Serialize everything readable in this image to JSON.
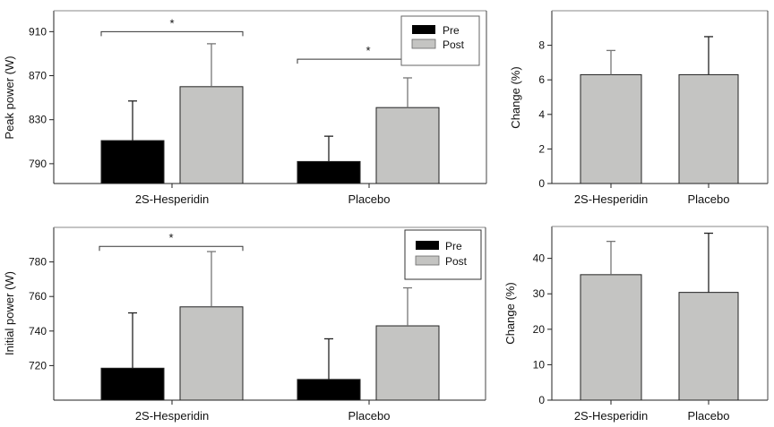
{
  "colors": {
    "pre": "#000000",
    "post": "#c4c4c2",
    "frame": "#555555",
    "error_pre": "#222222",
    "error_post": "#777777"
  },
  "chart_data": [
    {
      "id": "peak-power",
      "type": "bar",
      "title": "",
      "xlabel": "",
      "ylabel": "Peak power (W)",
      "categories": [
        "2S-Hesperidin",
        "Placebo"
      ],
      "ylim": [
        772,
        929
      ],
      "yticks": [
        790,
        830,
        870,
        910
      ],
      "ytick_labels": [
        "790",
        "830",
        "870",
        "910"
      ],
      "grid": false,
      "legend": {
        "position": "top-right",
        "entries": [
          "Pre",
          "Post"
        ]
      },
      "series": [
        {
          "name": "Pre",
          "values": [
            811,
            792
          ],
          "error_upper": [
            847,
            815
          ]
        },
        {
          "name": "Post",
          "values": [
            860,
            841
          ],
          "error_upper": [
            899,
            868
          ]
        }
      ],
      "annotations": [
        {
          "text": "*",
          "category": "2S-Hesperidin",
          "bracket_value": 910
        },
        {
          "text": "*",
          "category": "Placebo",
          "bracket_value": 885
        }
      ]
    },
    {
      "id": "peak-power-change",
      "type": "bar",
      "title": "",
      "xlabel": "",
      "ylabel": "Change (%)",
      "categories": [
        "2S-Hesperidin",
        "Placebo"
      ],
      "ylim": [
        0,
        10
      ],
      "yticks": [
        0,
        2,
        4,
        6,
        8
      ],
      "ytick_labels": [
        "0",
        "2",
        "4",
        "6",
        "8"
      ],
      "grid": false,
      "series": [
        {
          "name": "Change",
          "values": [
            6.3,
            6.3
          ],
          "error_upper": [
            7.7,
            8.5
          ]
        }
      ]
    },
    {
      "id": "initial-power",
      "type": "bar",
      "title": "",
      "xlabel": "",
      "ylabel": "Initial power (W)",
      "categories": [
        "2S-Hesperidin",
        "Placebo"
      ],
      "ylim": [
        700,
        800
      ],
      "yticks": [
        720,
        740,
        760,
        780
      ],
      "ytick_labels": [
        "720",
        "740",
        "760",
        "780"
      ],
      "grid": false,
      "legend": {
        "position": "top-right",
        "entries": [
          "Pre",
          "Post"
        ]
      },
      "series": [
        {
          "name": "Pre",
          "values": [
            718.5,
            712
          ],
          "error_upper": [
            750.5,
            735.5
          ]
        },
        {
          "name": "Post",
          "values": [
            754,
            743
          ],
          "error_upper": [
            786,
            765
          ]
        }
      ],
      "annotations": [
        {
          "text": "*",
          "category": "2S-Hesperidin",
          "bracket_value": 789
        }
      ]
    },
    {
      "id": "initial-power-change",
      "type": "bar",
      "title": "",
      "xlabel": "",
      "ylabel": "Change (%)",
      "categories": [
        "2S-Hesperidin",
        "Placebo"
      ],
      "ylim": [
        0,
        49
      ],
      "yticks": [
        0,
        10,
        20,
        30,
        40
      ],
      "ytick_labels": [
        "0",
        "10",
        "20",
        "30",
        "40"
      ],
      "grid": false,
      "series": [
        {
          "name": "Change",
          "values": [
            35.4,
            30.4
          ],
          "error_upper": [
            44.8,
            47.1
          ]
        }
      ]
    }
  ]
}
